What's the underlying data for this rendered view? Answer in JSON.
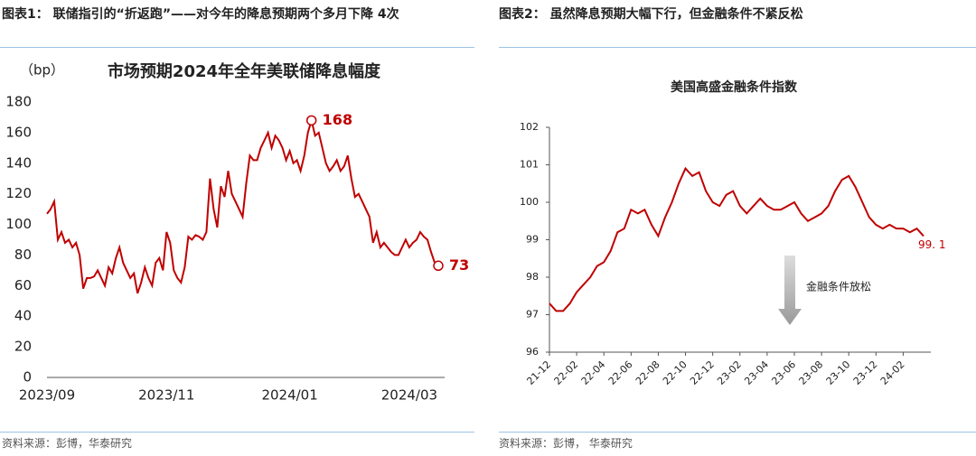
{
  "left": {
    "heading": "图表1： 联储指引的“折返跑”——对今年的降息预期两个多月下降 4次",
    "source": "资料来源：彭博，华泰研究"
  },
  "right": {
    "heading": "图表2： 虽然降息预期大幅下行，但金融条件不紧反松",
    "source": "资料来源：彭博， 华泰研究"
  },
  "chart_data": [
    {
      "type": "line",
      "title": "市场预期2024年全年美联储降息幅度",
      "unit_label": "（bp）",
      "color": "#c00000",
      "labels": [
        "max",
        "last"
      ],
      "markers": true,
      "y_axis_line": false,
      "categories": [
        "2023/09",
        null,
        null,
        null,
        null,
        null,
        null,
        null,
        null,
        null,
        null,
        null,
        null,
        null,
        null,
        null,
        null,
        null,
        null,
        null,
        null,
        null,
        null,
        null,
        null,
        null,
        null,
        null,
        null,
        null,
        null,
        null,
        null,
        "2023/11",
        null,
        null,
        null,
        null,
        null,
        null,
        null,
        null,
        null,
        null,
        null,
        null,
        null,
        null,
        null,
        null,
        null,
        null,
        null,
        null,
        null,
        null,
        null,
        null,
        null,
        null,
        null,
        null,
        null,
        null,
        null,
        null,
        null,
        "2024/01",
        null,
        null,
        null,
        null,
        null,
        null,
        null,
        null,
        null,
        null,
        null,
        null,
        null,
        null,
        null,
        null,
        null,
        null,
        null,
        null,
        null,
        null,
        null,
        null,
        null,
        null,
        null,
        null,
        null,
        null,
        null,
        null,
        "2024/03",
        null,
        null,
        null,
        null,
        null,
        null,
        null,
        null
      ],
      "values": [
        107,
        110,
        115,
        90,
        95,
        88,
        90,
        85,
        88,
        80,
        58,
        65,
        65,
        66,
        70,
        65,
        60,
        72,
        68,
        78,
        85,
        75,
        70,
        65,
        68,
        55,
        62,
        72,
        65,
        60,
        75,
        78,
        70,
        95,
        88,
        70,
        65,
        62,
        72,
        92,
        90,
        93,
        92,
        90,
        95,
        130,
        110,
        98,
        125,
        118,
        135,
        120,
        115,
        110,
        105,
        127,
        145,
        142,
        142,
        150,
        155,
        160,
        150,
        158,
        155,
        150,
        142,
        148,
        140,
        142,
        135,
        145,
        160,
        168,
        158,
        160,
        150,
        140,
        135,
        138,
        142,
        135,
        138,
        145,
        130,
        118,
        120,
        115,
        110,
        105,
        88,
        95,
        85,
        88,
        85,
        82,
        80,
        80,
        85,
        90,
        85,
        88,
        90,
        95,
        92,
        90,
        82,
        75,
        73
      ],
      "ylim": [
        0,
        180
      ],
      "yticks": [
        0,
        20,
        40,
        60,
        80,
        100,
        120,
        140,
        160,
        180
      ]
    },
    {
      "type": "line",
      "title": "美国高盛金融条件指数",
      "annotation": "金融条件放松",
      "color": "#c00000",
      "labels": [
        "last"
      ],
      "markers": false,
      "y_axis_line": true,
      "categories": [
        "21-12",
        null,
        null,
        null,
        "22-02",
        null,
        null,
        null,
        "22-04",
        null,
        null,
        null,
        "22-06",
        null,
        null,
        null,
        "22-08",
        null,
        null,
        null,
        "22-10",
        null,
        null,
        null,
        "22-12",
        null,
        null,
        null,
        "23-02",
        null,
        null,
        null,
        "23-04",
        null,
        null,
        null,
        "23-06",
        null,
        null,
        null,
        "23-08",
        null,
        null,
        null,
        "23-10",
        null,
        null,
        null,
        "23-12",
        null,
        null,
        null,
        "24-02",
        null,
        null,
        null
      ],
      "values": [
        97.3,
        97.1,
        97.1,
        97.3,
        97.6,
        97.8,
        98.0,
        98.3,
        98.4,
        98.7,
        99.2,
        99.3,
        99.8,
        99.7,
        99.8,
        99.4,
        99.1,
        99.6,
        100.0,
        100.5,
        100.9,
        100.7,
        100.8,
        100.3,
        100.0,
        99.9,
        100.2,
        100.3,
        99.9,
        99.7,
        99.9,
        100.1,
        99.9,
        99.8,
        99.8,
        99.9,
        100.0,
        99.7,
        99.5,
        99.6,
        99.7,
        99.9,
        100.3,
        100.6,
        100.7,
        100.4,
        100.0,
        99.6,
        99.4,
        99.3,
        99.4,
        99.3,
        99.3,
        99.2,
        99.3,
        99.1
      ],
      "value_labels": [
        null,
        null,
        null,
        null,
        null,
        null,
        null,
        null,
        null,
        null,
        null,
        null,
        null,
        null,
        null,
        null,
        null,
        null,
        null,
        null,
        null,
        null,
        null,
        null,
        null,
        null,
        null,
        null,
        null,
        null,
        null,
        null,
        null,
        null,
        null,
        null,
        null,
        null,
        null,
        null,
        null,
        null,
        null,
        null,
        null,
        null,
        null,
        null,
        null,
        null,
        null,
        null,
        null,
        null,
        null,
        "99. 1"
      ],
      "ylim": [
        96,
        102
      ],
      "yticks": [
        96,
        97,
        98,
        99,
        100,
        101,
        102
      ]
    }
  ]
}
